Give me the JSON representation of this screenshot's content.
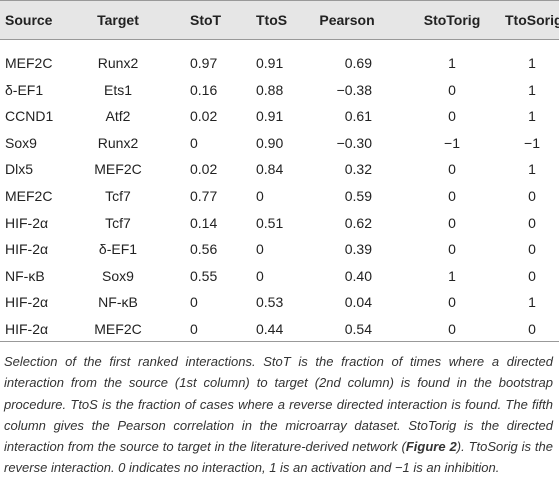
{
  "table": {
    "header": [
      "Source",
      "Target",
      "StoT",
      "TtoS",
      "Pearson",
      "StoTorig",
      "TtoSorig"
    ],
    "rows": [
      [
        "MEF2C",
        "Runx2",
        "0.97",
        "0.91",
        "0.69",
        "1",
        "1"
      ],
      [
        "δ-EF1",
        "Ets1",
        "0.16",
        "0.88",
        "−0.38",
        "0",
        "1"
      ],
      [
        "CCND1",
        "Atf2",
        "0.02",
        "0.91",
        "0.61",
        "0",
        "1"
      ],
      [
        "Sox9",
        "Runx2",
        "0",
        "0.90",
        "−0.30",
        "−1",
        "−1"
      ],
      [
        "Dlx5",
        "MEF2C",
        "0.02",
        "0.84",
        "0.32",
        "0",
        "1"
      ],
      [
        "MEF2C",
        "Tcf7",
        "0.77",
        "0",
        "0.59",
        "0",
        "0"
      ],
      [
        "HIF-2α",
        "Tcf7",
        "0.14",
        "0.51",
        "0.62",
        "0",
        "0"
      ],
      [
        "HIF-2α",
        "δ-EF1",
        "0.56",
        "0",
        "0.39",
        "0",
        "0"
      ],
      [
        "NF-κB",
        "Sox9",
        "0.55",
        "0",
        "0.40",
        "1",
        "0"
      ],
      [
        "HIF-2α",
        "NF-κB",
        "0",
        "0.53",
        "0.04",
        "0",
        "1"
      ],
      [
        "HIF-2α",
        "MEF2C",
        "0",
        "0.44",
        "0.54",
        "0",
        "0"
      ]
    ]
  },
  "caption": [
    "Selection of the first ranked interactions. StoT is the fraction of times where a directed interaction from the source (1st column) to target (2nd column) is found in the bootstrap procedure. TtoS is the fraction of cases where a reverse directed interaction is found. The fifth column gives the Pearson correlation in the microarray dataset. StoTorig is the directed interaction from the source to target in the literature-derived network (",
    "Figure 2",
    "). TtoSorig is the reverse interaction. 0 indicates no interaction, 1 is an activation and −1 is an inhibition."
  ]
}
